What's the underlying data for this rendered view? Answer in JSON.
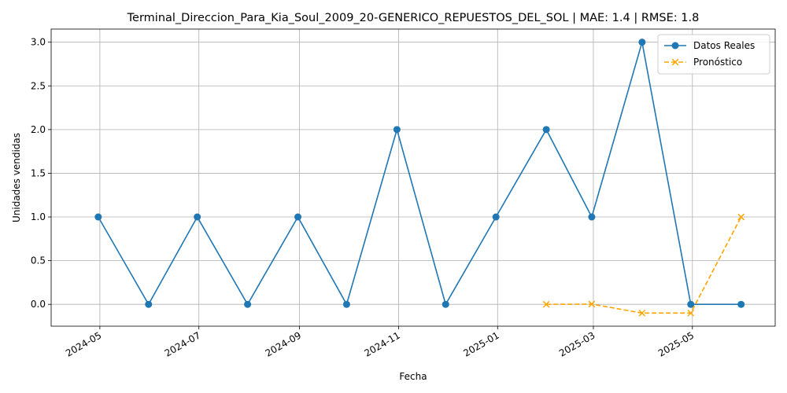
{
  "chart_data": {
    "type": "line",
    "title": "Terminal_Direccion_Para_Kia_Soul_2009_20-GENERICO_REPUESTOS_DEL_SOL | MAE: 1.4 | RMSE: 1.8",
    "xlabel": "Fecha",
    "ylabel": "Unidades vendidas",
    "ylim": [
      -0.25,
      3.15
    ],
    "xlim": [
      "2024-04-01",
      "2025-06-21"
    ],
    "grid": true,
    "legend_position": "top-right",
    "x_ticks": [
      "2024-05",
      "2024-07",
      "2024-09",
      "2024-11",
      "2025-01",
      "2025-03",
      "2025-05"
    ],
    "x_tick_dates": [
      "2024-05-01",
      "2024-07-01",
      "2024-09-01",
      "2024-11-01",
      "2025-01-01",
      "2025-03-01",
      "2025-05-01"
    ],
    "y_ticks": [
      "0.0",
      "0.5",
      "1.0",
      "1.5",
      "2.0",
      "2.5",
      "3.0"
    ],
    "series": [
      {
        "name": "Datos Reales",
        "color": "#1f77b4",
        "marker": "circle",
        "line_style": "solid",
        "x": [
          "2024-04-30",
          "2024-05-31",
          "2024-06-30",
          "2024-07-31",
          "2024-08-31",
          "2024-09-30",
          "2024-10-31",
          "2024-11-30",
          "2024-12-31",
          "2025-01-31",
          "2025-02-28",
          "2025-03-31",
          "2025-04-30",
          "2025-05-31"
        ],
        "values": [
          1,
          0,
          1,
          0,
          1,
          0,
          2,
          0,
          1,
          2,
          1,
          3,
          0,
          0
        ]
      },
      {
        "name": "Pronóstico",
        "color": "#ffa500",
        "marker": "x",
        "line_style": "dashed",
        "x": [
          "2025-01-31",
          "2025-02-28",
          "2025-03-31",
          "2025-04-30",
          "2025-05-31"
        ],
        "values": [
          0,
          0.003,
          -0.1,
          -0.1,
          1
        ]
      }
    ]
  }
}
